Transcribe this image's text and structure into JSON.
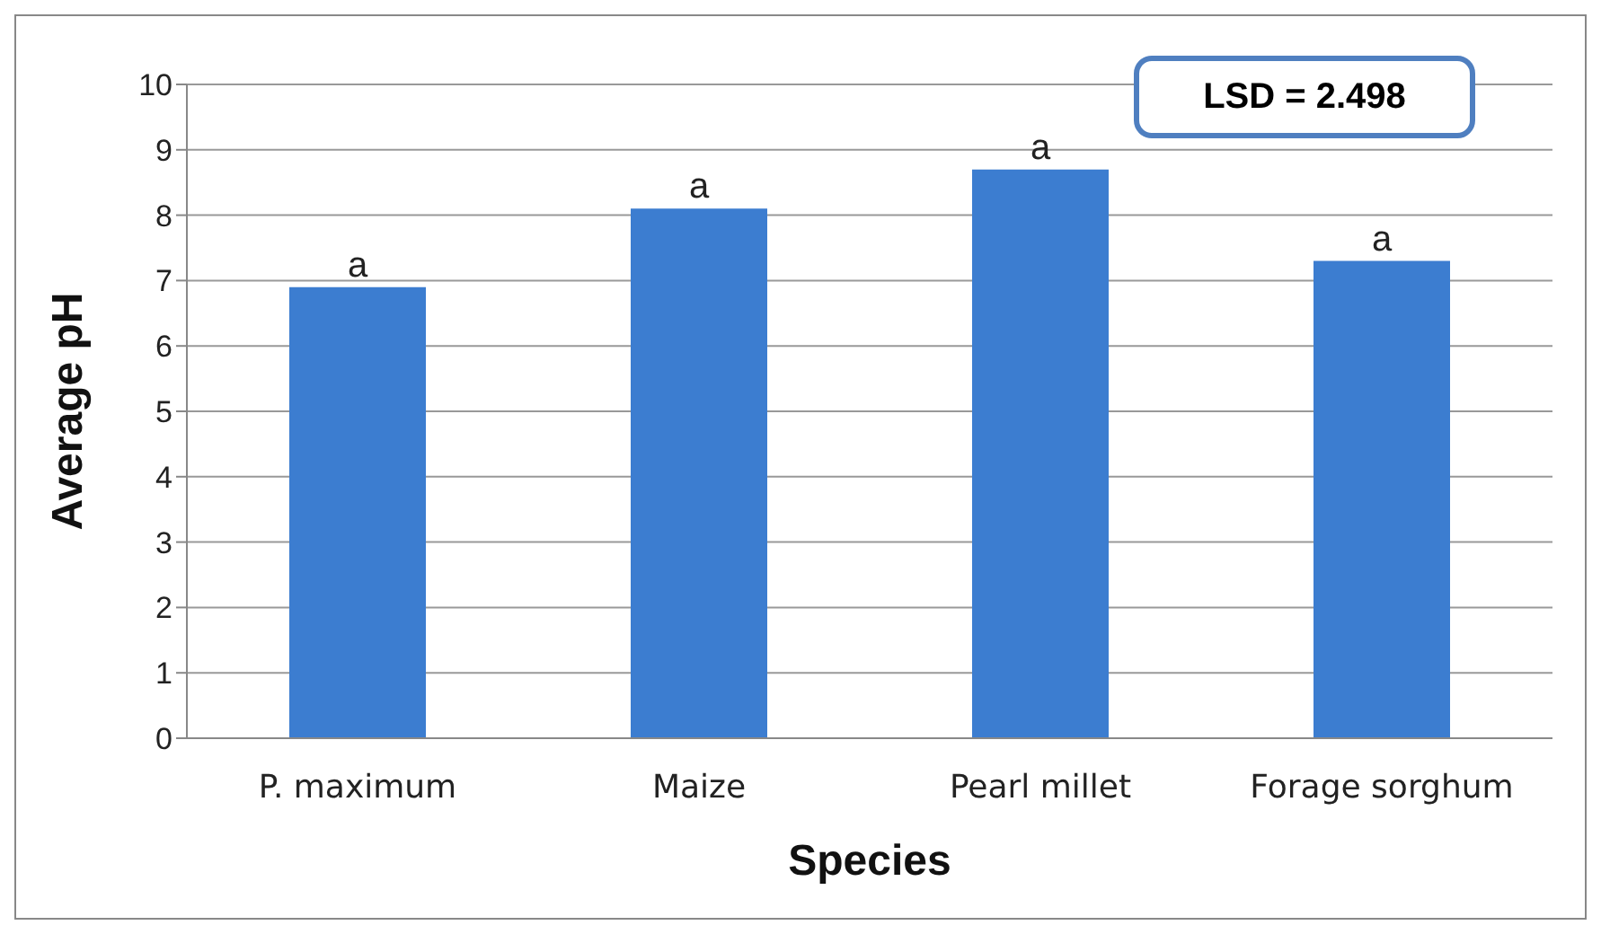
{
  "chart_data": {
    "type": "bar",
    "xlabel": "Species",
    "ylabel": "Average pH",
    "categories": [
      "P. maximum",
      "Maize",
      "Pearl millet",
      "Forage sorghum"
    ],
    "values": [
      6.9,
      8.1,
      8.7,
      7.3
    ],
    "color": "#3c7dd0",
    "ylim": [
      0,
      10
    ],
    "yticks": [
      0,
      1,
      2,
      3,
      4,
      5,
      6,
      7,
      8,
      9,
      10
    ],
    "grid": "y",
    "annotations": [
      {
        "text": "a",
        "x": "P. maximum",
        "y": 6.9
      },
      {
        "text": "a",
        "x": "Maize",
        "y": 8.1
      },
      {
        "text": "a",
        "x": "Pearl millet",
        "y": 8.7
      },
      {
        "text": "a",
        "x": "Forage sorghum",
        "y": 7.3
      },
      "LSD = 2.498"
    ]
  }
}
